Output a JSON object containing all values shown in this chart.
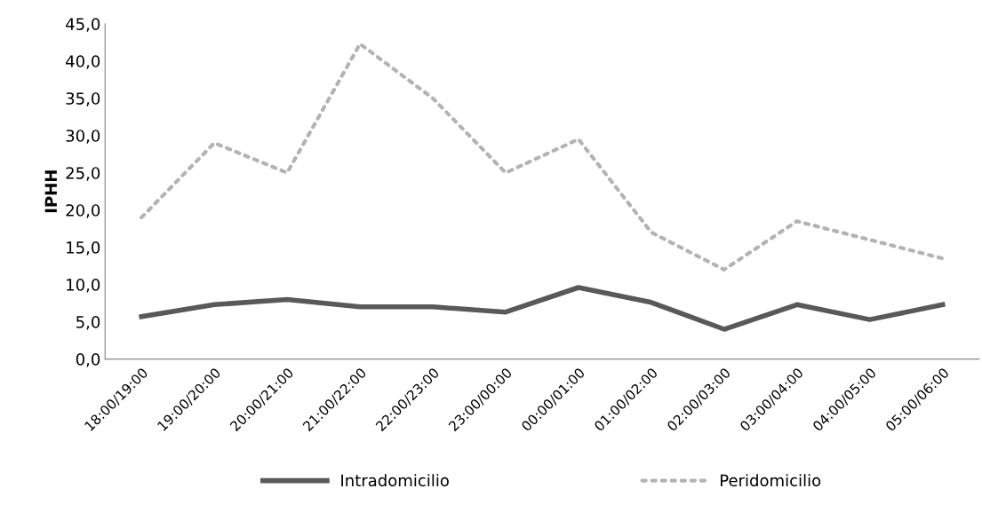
{
  "chart_data": {
    "type": "line",
    "ylabel": "IPHH",
    "categories": [
      "18:00/19:00",
      "19:00/20:00",
      "20:00/21:00",
      "21:00/22:00",
      "22:00/23:00",
      "23:00/00:00",
      "00:00/01:00",
      "01:00/02:00",
      "02:00/03:00",
      "03:00/04:00",
      "04:00/05:00",
      "05:00/06:00"
    ],
    "series": [
      {
        "name": "Intradomicilio",
        "color": "#595959",
        "line_style": "solid",
        "values": [
          5.7,
          7.3,
          8.0,
          7.0,
          7.0,
          6.3,
          9.6,
          7.6,
          4.0,
          7.3,
          5.3,
          7.3
        ]
      },
      {
        "name": "Peridomicilio",
        "color": "#b3b3b3",
        "line_style": "dotted",
        "values": [
          19.0,
          29.0,
          25.0,
          42.3,
          35.0,
          25.0,
          29.5,
          17.0,
          12.0,
          18.5,
          16.0,
          13.5
        ]
      }
    ],
    "ylim": [
      0,
      45
    ],
    "yticks": [
      {
        "value": 0,
        "label": "0,0"
      },
      {
        "value": 5,
        "label": "5,0"
      },
      {
        "value": 10,
        "label": "10,0"
      },
      {
        "value": 15,
        "label": "15,0"
      },
      {
        "value": 20,
        "label": "20,0"
      },
      {
        "value": 25,
        "label": "25,0"
      },
      {
        "value": 30,
        "label": "30,0"
      },
      {
        "value": 35,
        "label": "35,0"
      },
      {
        "value": 40,
        "label": "40,0"
      },
      {
        "value": 45,
        "label": "45,0"
      }
    ],
    "grid": false,
    "legend": "bottom",
    "marker": "none"
  }
}
